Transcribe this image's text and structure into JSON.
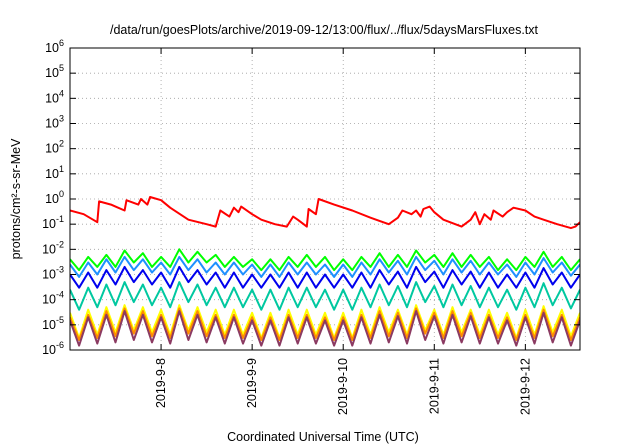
{
  "chart_data": {
    "type": "line",
    "title": "/data/run/goesPlots/archive/2019-09-12/13:00/flux/../flux/5daysMarsFluxes.txt",
    "xlabel": "Coordinated Universal Time (UTC)",
    "ylabel": "protons/cm²-s-sr-MeV",
    "yscale": "log",
    "ylim": [
      1e-06,
      1000000.0
    ],
    "xlim": [
      7.0,
      12.6
    ],
    "x_unit": "day of September 2019",
    "yticks": [
      {
        "value": 1e-06,
        "base": "10",
        "exp": "-6"
      },
      {
        "value": 1e-05,
        "base": "10",
        "exp": "-5"
      },
      {
        "value": 0.0001,
        "base": "10",
        "exp": "-4"
      },
      {
        "value": 0.001,
        "base": "10",
        "exp": "-3"
      },
      {
        "value": 0.01,
        "base": "10",
        "exp": "-2"
      },
      {
        "value": 0.1,
        "base": "10",
        "exp": "-1"
      },
      {
        "value": 1,
        "base": "10",
        "exp": "0"
      },
      {
        "value": 10,
        "base": "10",
        "exp": "1"
      },
      {
        "value": 100,
        "base": "10",
        "exp": "2"
      },
      {
        "value": 1000,
        "base": "10",
        "exp": "3"
      },
      {
        "value": 10000,
        "base": "10",
        "exp": "4"
      },
      {
        "value": 100000,
        "base": "10",
        "exp": "5"
      },
      {
        "value": 1000000,
        "base": "10",
        "exp": "6"
      }
    ],
    "xticks": [
      {
        "value": 8,
        "label": "2019-9-8"
      },
      {
        "value": 9,
        "label": "2019-9-9"
      },
      {
        "value": 10,
        "label": "2019-9-10"
      },
      {
        "value": 11,
        "label": "2019-9-11"
      },
      {
        "value": 12,
        "label": "2019-9-12"
      }
    ],
    "grid": true,
    "legend": "none",
    "series": [
      {
        "color": "#ff0000",
        "x": [
          7.0,
          7.15,
          7.3,
          7.32,
          7.45,
          7.5,
          7.6,
          7.62,
          7.75,
          7.78,
          7.85,
          7.88,
          8.0,
          8.1,
          8.3,
          8.5,
          8.6,
          8.65,
          8.75,
          8.8,
          8.85,
          8.88,
          9.0,
          9.1,
          9.25,
          9.38,
          9.45,
          9.5,
          9.6,
          9.62,
          9.7,
          9.73,
          9.9,
          10.1,
          10.3,
          10.5,
          10.6,
          10.65,
          10.75,
          10.8,
          10.85,
          10.88,
          10.95,
          11.0,
          11.1,
          11.3,
          11.4,
          11.45,
          11.5,
          11.55,
          11.62,
          11.65,
          11.75,
          11.8,
          11.87,
          12.0,
          12.1,
          12.2,
          12.35,
          12.5,
          12.55,
          12.6
        ],
        "y": [
          0.35,
          0.25,
          0.12,
          0.8,
          0.6,
          0.5,
          0.35,
          0.9,
          0.6,
          1.0,
          0.6,
          1.2,
          0.9,
          0.45,
          0.15,
          0.1,
          0.08,
          0.35,
          0.2,
          0.45,
          0.3,
          0.5,
          0.25,
          0.15,
          0.1,
          0.08,
          0.2,
          0.15,
          0.08,
          0.4,
          0.25,
          1.0,
          0.6,
          0.35,
          0.18,
          0.1,
          0.18,
          0.35,
          0.25,
          0.35,
          0.2,
          0.4,
          0.5,
          0.3,
          0.15,
          0.08,
          0.15,
          0.3,
          0.1,
          0.25,
          0.15,
          0.35,
          0.2,
          0.3,
          0.45,
          0.35,
          0.2,
          0.15,
          0.1,
          0.07,
          0.08,
          0.12
        ]
      },
      {
        "color": "#00ff00",
        "x": [
          7.0,
          7.1,
          7.2,
          7.3,
          7.4,
          7.5,
          7.6,
          7.7,
          7.8,
          7.9,
          8.0,
          8.1,
          8.2,
          8.3,
          8.4,
          8.5,
          8.6,
          8.7,
          8.8,
          8.9,
          9.0,
          9.1,
          9.2,
          9.3,
          9.4,
          9.5,
          9.6,
          9.7,
          9.8,
          9.9,
          10.0,
          10.1,
          10.2,
          10.3,
          10.4,
          10.5,
          10.6,
          10.7,
          10.8,
          10.9,
          11.0,
          11.1,
          11.2,
          11.3,
          11.4,
          11.5,
          11.6,
          11.7,
          11.8,
          11.9,
          12.0,
          12.1,
          12.2,
          12.3,
          12.4,
          12.5,
          12.6
        ],
        "y": [
          0.004,
          0.0015,
          0.005,
          0.002,
          0.006,
          0.002,
          0.009,
          0.003,
          0.007,
          0.002,
          0.005,
          0.002,
          0.01,
          0.003,
          0.008,
          0.003,
          0.006,
          0.002,
          0.005,
          0.002,
          0.004,
          0.0015,
          0.004,
          0.0015,
          0.005,
          0.002,
          0.006,
          0.002,
          0.005,
          0.0015,
          0.004,
          0.0015,
          0.005,
          0.002,
          0.007,
          0.002,
          0.006,
          0.002,
          0.009,
          0.003,
          0.006,
          0.002,
          0.007,
          0.002,
          0.006,
          0.002,
          0.005,
          0.0015,
          0.004,
          0.0015,
          0.005,
          0.002,
          0.008,
          0.002,
          0.005,
          0.0015,
          0.004
        ]
      },
      {
        "color": "#1e90ff",
        "x": [
          7.0,
          7.1,
          7.2,
          7.3,
          7.4,
          7.5,
          7.6,
          7.7,
          7.8,
          7.9,
          8.0,
          8.1,
          8.2,
          8.3,
          8.4,
          8.5,
          8.6,
          8.7,
          8.8,
          8.9,
          9.0,
          9.1,
          9.2,
          9.3,
          9.4,
          9.5,
          9.6,
          9.7,
          9.8,
          9.9,
          10.0,
          10.1,
          10.2,
          10.3,
          10.4,
          10.5,
          10.6,
          10.7,
          10.8,
          10.9,
          11.0,
          11.1,
          11.2,
          11.3,
          11.4,
          11.5,
          11.6,
          11.7,
          11.8,
          11.9,
          12.0,
          12.1,
          12.2,
          12.3,
          12.4,
          12.5,
          12.6
        ],
        "y": [
          0.0025,
          0.0008,
          0.003,
          0.001,
          0.004,
          0.0012,
          0.005,
          0.0015,
          0.004,
          0.0012,
          0.003,
          0.001,
          0.005,
          0.0015,
          0.004,
          0.0012,
          0.003,
          0.001,
          0.003,
          0.001,
          0.0025,
          0.0008,
          0.0025,
          0.0008,
          0.003,
          0.001,
          0.003,
          0.001,
          0.0025,
          0.0008,
          0.0025,
          0.0008,
          0.003,
          0.001,
          0.004,
          0.0012,
          0.0035,
          0.001,
          0.005,
          0.0015,
          0.0035,
          0.001,
          0.004,
          0.0012,
          0.0035,
          0.001,
          0.003,
          0.001,
          0.0025,
          0.0008,
          0.003,
          0.001,
          0.0045,
          0.0012,
          0.003,
          0.0009,
          0.0025
        ]
      },
      {
        "color": "#0000ee",
        "x": [
          7.0,
          7.1,
          7.2,
          7.3,
          7.4,
          7.5,
          7.6,
          7.7,
          7.8,
          7.9,
          8.0,
          8.1,
          8.2,
          8.3,
          8.4,
          8.5,
          8.6,
          8.7,
          8.8,
          8.9,
          9.0,
          9.1,
          9.2,
          9.3,
          9.4,
          9.5,
          9.6,
          9.7,
          9.8,
          9.9,
          10.0,
          10.1,
          10.2,
          10.3,
          10.4,
          10.5,
          10.6,
          10.7,
          10.8,
          10.9,
          11.0,
          11.1,
          11.2,
          11.3,
          11.4,
          11.5,
          11.6,
          11.7,
          11.8,
          11.9,
          12.0,
          12.1,
          12.2,
          12.3,
          12.4,
          12.5,
          12.6
        ],
        "y": [
          0.001,
          0.0003,
          0.0012,
          0.0003,
          0.0015,
          0.0004,
          0.002,
          0.0005,
          0.0015,
          0.0004,
          0.0012,
          0.0003,
          0.002,
          0.0005,
          0.0015,
          0.0004,
          0.0012,
          0.0003,
          0.0012,
          0.0003,
          0.001,
          0.0003,
          0.001,
          0.0003,
          0.0012,
          0.0003,
          0.0012,
          0.0003,
          0.001,
          0.0003,
          0.001,
          0.0003,
          0.0012,
          0.0003,
          0.0015,
          0.0004,
          0.0013,
          0.0003,
          0.002,
          0.0005,
          0.0013,
          0.0003,
          0.0015,
          0.0004,
          0.0013,
          0.0003,
          0.0012,
          0.0003,
          0.001,
          0.0003,
          0.0012,
          0.0003,
          0.0018,
          0.0004,
          0.0012,
          0.0003,
          0.001
        ]
      },
      {
        "color": "#00c8a0",
        "x": [
          7.0,
          7.1,
          7.2,
          7.3,
          7.4,
          7.5,
          7.6,
          7.7,
          7.8,
          7.9,
          8.0,
          8.1,
          8.2,
          8.3,
          8.4,
          8.5,
          8.6,
          8.7,
          8.8,
          8.9,
          9.0,
          9.1,
          9.2,
          9.3,
          9.4,
          9.5,
          9.6,
          9.7,
          9.8,
          9.9,
          10.0,
          10.1,
          10.2,
          10.3,
          10.4,
          10.5,
          10.6,
          10.7,
          10.8,
          10.9,
          11.0,
          11.1,
          11.2,
          11.3,
          11.4,
          11.5,
          11.6,
          11.7,
          11.8,
          11.9,
          12.0,
          12.1,
          12.2,
          12.3,
          12.4,
          12.5,
          12.6
        ],
        "y": [
          0.00025,
          4e-05,
          0.0003,
          5e-05,
          0.0004,
          6e-05,
          0.0005,
          8e-05,
          0.0004,
          6e-05,
          0.0003,
          5e-05,
          0.0005,
          8e-05,
          0.0004,
          6e-05,
          0.0003,
          5e-05,
          0.0003,
          5e-05,
          0.00025,
          4e-05,
          0.00025,
          4e-05,
          0.0003,
          5e-05,
          0.0003,
          5e-05,
          0.00025,
          4e-05,
          0.00025,
          4e-05,
          0.0003,
          5e-05,
          0.0004,
          6e-05,
          0.00035,
          5e-05,
          0.0005,
          8e-05,
          0.00035,
          5e-05,
          0.0004,
          6e-05,
          0.00035,
          5e-05,
          0.0003,
          5e-05,
          0.00025,
          4e-05,
          0.0003,
          5e-05,
          0.00045,
          6e-05,
          0.0003,
          4.5e-05,
          0.00025
        ]
      },
      {
        "color": "#ffff00",
        "x": [
          7.0,
          7.1,
          7.2,
          7.3,
          7.4,
          7.5,
          7.6,
          7.7,
          7.8,
          7.9,
          8.0,
          8.1,
          8.2,
          8.3,
          8.4,
          8.5,
          8.6,
          8.7,
          8.8,
          8.9,
          9.0,
          9.1,
          9.2,
          9.3,
          9.4,
          9.5,
          9.6,
          9.7,
          9.8,
          9.9,
          10.0,
          10.1,
          10.2,
          10.3,
          10.4,
          10.5,
          10.6,
          10.7,
          10.8,
          10.9,
          11.0,
          11.1,
          11.2,
          11.3,
          11.4,
          11.5,
          11.6,
          11.7,
          11.8,
          11.9,
          12.0,
          12.1,
          12.2,
          12.3,
          12.4,
          12.5,
          12.6
        ],
        "y": [
          3e-05,
          3e-06,
          4e-05,
          4e-06,
          5e-05,
          5e-06,
          6e-05,
          6e-06,
          5e-05,
          5e-06,
          4e-05,
          4e-06,
          6e-05,
          6e-06,
          5e-05,
          5e-06,
          4e-05,
          4e-06,
          4e-05,
          4e-06,
          3e-05,
          3e-06,
          3e-05,
          3e-06,
          4e-05,
          4e-06,
          4e-05,
          4e-06,
          3e-05,
          3e-06,
          3e-05,
          3e-06,
          4e-05,
          4e-06,
          5e-05,
          5e-06,
          4e-05,
          4e-06,
          6e-05,
          6e-06,
          4e-05,
          4e-06,
          5e-05,
          5e-06,
          4e-05,
          4e-06,
          4e-05,
          4e-06,
          3e-05,
          3e-06,
          4e-05,
          4e-06,
          5.5e-05,
          5e-06,
          4e-05,
          3.5e-06,
          3e-05
        ]
      },
      {
        "color": "#ff8c00",
        "x": [
          7.0,
          7.1,
          7.2,
          7.3,
          7.4,
          7.5,
          7.6,
          7.7,
          7.8,
          7.9,
          8.0,
          8.1,
          8.2,
          8.3,
          8.4,
          8.5,
          8.6,
          8.7,
          8.8,
          8.9,
          9.0,
          9.1,
          9.2,
          9.3,
          9.4,
          9.5,
          9.6,
          9.7,
          9.8,
          9.9,
          10.0,
          10.1,
          10.2,
          10.3,
          10.4,
          10.5,
          10.6,
          10.7,
          10.8,
          10.9,
          11.0,
          11.1,
          11.2,
          11.3,
          11.4,
          11.5,
          11.6,
          11.7,
          11.8,
          11.9,
          12.0,
          12.1,
          12.2,
          12.3,
          12.4,
          12.5,
          12.6
        ],
        "y": [
          2e-05,
          2.5e-06,
          2.5e-05,
          3e-06,
          3.5e-05,
          3.5e-06,
          4.5e-05,
          4.5e-06,
          3.5e-05,
          3.5e-06,
          2.5e-05,
          3e-06,
          4.5e-05,
          4.5e-06,
          3.5e-05,
          3.5e-06,
          2.5e-05,
          3e-06,
          2.5e-05,
          3e-06,
          2e-05,
          2.5e-06,
          2e-05,
          2.5e-06,
          2.5e-05,
          3e-06,
          2.5e-05,
          3e-06,
          2e-05,
          2.5e-06,
          2e-05,
          2.5e-06,
          2.5e-05,
          3e-06,
          3.5e-05,
          3.5e-06,
          3e-05,
          3e-06,
          4.5e-05,
          4.5e-06,
          3e-05,
          3e-06,
          3.5e-05,
          3.5e-06,
          3e-05,
          3e-06,
          2.5e-05,
          3e-06,
          2e-05,
          2.5e-06,
          2.5e-05,
          3e-06,
          4e-05,
          3.5e-06,
          2.5e-05,
          2.5e-06,
          2e-05
        ]
      },
      {
        "color": "#8b3a62",
        "x": [
          7.0,
          7.1,
          7.2,
          7.3,
          7.4,
          7.5,
          7.6,
          7.7,
          7.8,
          7.9,
          8.0,
          8.1,
          8.2,
          8.3,
          8.4,
          8.5,
          8.6,
          8.7,
          8.8,
          8.9,
          9.0,
          9.1,
          9.2,
          9.3,
          9.4,
          9.5,
          9.6,
          9.7,
          9.8,
          9.9,
          10.0,
          10.1,
          10.2,
          10.3,
          10.4,
          10.5,
          10.6,
          10.7,
          10.8,
          10.9,
          11.0,
          11.1,
          11.2,
          11.3,
          11.4,
          11.5,
          11.6,
          11.7,
          11.8,
          11.9,
          12.0,
          12.1,
          12.2,
          12.3,
          12.4,
          12.5,
          12.6
        ],
        "y": [
          1.5e-05,
          1.5e-06,
          2e-05,
          1.8e-06,
          2.5e-05,
          2e-06,
          3.5e-05,
          2.5e-06,
          2.5e-05,
          2e-06,
          2e-05,
          1.8e-06,
          3.5e-05,
          2.5e-06,
          2.5e-05,
          2e-06,
          2e-05,
          1.8e-06,
          2e-05,
          1.8e-06,
          1.5e-05,
          1.5e-06,
          1.5e-05,
          1.5e-06,
          2e-05,
          1.8e-06,
          2e-05,
          1.8e-06,
          1.5e-05,
          1.5e-06,
          1.5e-05,
          1.5e-06,
          2e-05,
          1.8e-06,
          2.5e-05,
          2e-06,
          2.2e-05,
          1.8e-06,
          3.5e-05,
          2.5e-06,
          2.2e-05,
          1.8e-06,
          2.5e-05,
          2e-06,
          2.2e-05,
          1.8e-06,
          2e-05,
          1.8e-06,
          1.5e-05,
          1.5e-06,
          2e-05,
          1.8e-06,
          3e-05,
          2e-06,
          2e-05,
          1.5e-06,
          1.5e-05
        ]
      }
    ]
  }
}
